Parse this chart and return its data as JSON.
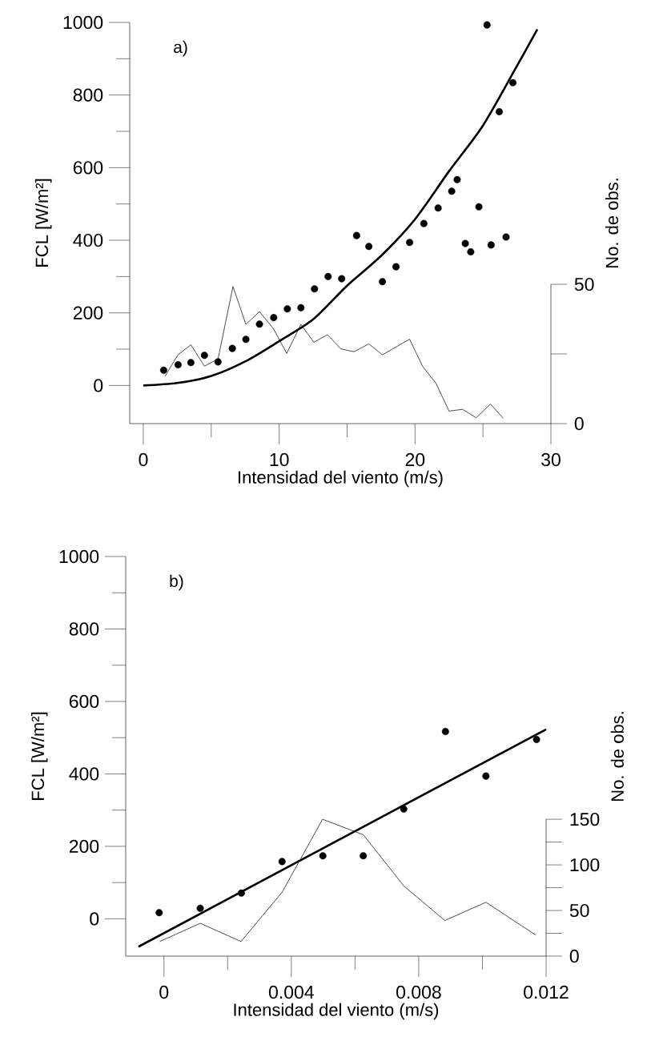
{
  "chart_data": [
    {
      "type": "scatter",
      "xlabel": "Intensidad del viento (m/s)",
      "ylabel": "FCL [W/m²]",
      "y2label": "No. de obs.",
      "annotations": [
        "a)"
      ],
      "xlim": [
        -1,
        30
      ],
      "ylim": [
        -105,
        1000
      ],
      "y2lim": [
        0,
        144
      ],
      "xticks": [
        0,
        10,
        20,
        30
      ],
      "yticks": [
        0,
        200,
        400,
        600,
        800,
        1000
      ],
      "y2ticks": [
        0,
        50
      ],
      "series": [
        {
          "marker": "circle",
          "color": "#000000",
          "x": [
            1.5,
            2.56,
            3.5,
            4.5,
            5.5,
            6.55,
            7.55,
            8.55,
            9.6,
            10.6,
            11.6,
            12.6,
            13.6,
            14.6,
            15.7,
            16.6,
            17.6,
            18.6,
            19.6,
            20.65,
            21.7,
            22.7,
            23.1,
            23.7,
            24.1,
            24.7,
            25.3,
            25.6,
            26.2,
            26.7,
            27.2
          ],
          "values": [
            42,
            57,
            63,
            83,
            65,
            102,
            127,
            169,
            187,
            211,
            214,
            266,
            300,
            294,
            413,
            383,
            286,
            327,
            394,
            446,
            489,
            535,
            567,
            391,
            368,
            492,
            993,
            387,
            754,
            409,
            834
          ]
        },
        {
          "type": "line",
          "marker": "none",
          "color": "#000000",
          "x": [
            0,
            2.5,
            5,
            7.5,
            10,
            12.5,
            15,
            17.5,
            20,
            22.5,
            25,
            27.5,
            29
          ],
          "values": [
            0,
            7,
            26,
            66,
            122,
            182,
            275,
            357,
            458,
            590,
            716,
            880,
            981
          ]
        },
        {
          "type": "line",
          "axis": "y2",
          "marker": "none",
          "color": "#000000",
          "x": [
            1.6,
            2.55,
            3.5,
            4.5,
            5.5,
            6.6,
            7.55,
            8.55,
            9.6,
            10.55,
            11.6,
            12.55,
            13.55,
            14.55,
            15.5,
            16.6,
            17.6,
            19.6,
            20.55,
            21.55,
            22.5,
            23.5,
            24.5,
            25.55,
            26.5
          ],
          "values": [
            17,
            24.7,
            28.3,
            20.6,
            23.2,
            49.2,
            35.6,
            40.2,
            33.9,
            25.2,
            35.6,
            29.2,
            31.9,
            26.8,
            25.8,
            28.6,
            24.7,
            30.3,
            20.6,
            14.4,
            4.5,
            5.1,
            2.1,
            7.0,
            1.9
          ]
        }
      ]
    },
    {
      "type": "scatter",
      "xlabel": "Intensidad del viento (m/s)",
      "ylabel": "FCL [W/m²]",
      "y2label": "No. de obs.",
      "annotations": [
        "b)"
      ],
      "xlim": [
        -0.0012,
        0.012
      ],
      "ylim": [
        -103,
        1000
      ],
      "y2lim": [
        0,
        438
      ],
      "xticks": [
        0,
        0.004,
        0.008,
        0.012
      ],
      "yticks": [
        0,
        200,
        400,
        600,
        800,
        1000
      ],
      "y2ticks": [
        0,
        50,
        100,
        150
      ],
      "series": [
        {
          "marker": "circle",
          "color": "#000000",
          "x": [
            -0.00015,
            0.00114,
            0.00243,
            0.00371,
            0.00499,
            0.00626,
            0.00753,
            0.00884,
            0.01011,
            0.0117
          ],
          "values": [
            17,
            29,
            71,
            158,
            174,
            174,
            303,
            517,
            394,
            495
          ]
        },
        {
          "type": "line",
          "marker": "none",
          "color": "#000000",
          "x": [
            -0.0008,
            0.012
          ],
          "values": [
            -77,
            523
          ]
        },
        {
          "type": "line",
          "axis": "y2",
          "marker": "none",
          "color": "#000000",
          "x": [
            -0.00013,
            0.00114,
            0.00242,
            0.00371,
            0.00498,
            0.00626,
            0.00753,
            0.00882,
            0.01011,
            0.01168
          ],
          "values": [
            16,
            36,
            16,
            70,
            150,
            133,
            77,
            39,
            59,
            23
          ]
        }
      ]
    }
  ]
}
